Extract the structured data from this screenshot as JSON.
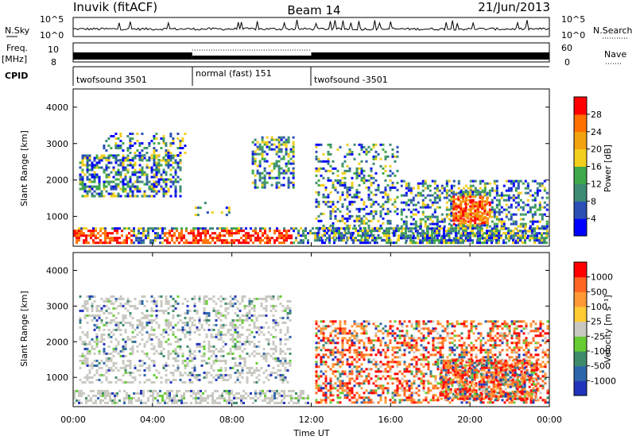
{
  "header": {
    "station": "Inuvik (fitACF)",
    "beam": "Beam 14",
    "date": "21/Jun/2013"
  },
  "top_panels": {
    "nsky_label": "N.Sky",
    "nsearch_label": "N.Search",
    "nsky_ticks": [
      "10^5",
      "10^0"
    ],
    "nsearch_ticks": [
      "10^5",
      "10^0"
    ],
    "freq_label_1": "Freq.",
    "freq_label_2": "[MHz]",
    "freq_ticks": [
      "10",
      "8"
    ],
    "nave_label": "Nave",
    "nave_ticks": [
      "60",
      "0"
    ],
    "cpid_label": "CPID",
    "cpid_segments": [
      {
        "label": "twofsound 3501",
        "start_h": 0,
        "end_h": 6
      },
      {
        "label": "normal (fast) 151",
        "start_h": 6,
        "end_h": 12
      },
      {
        "label": "twofsound -3501",
        "start_h": 12,
        "end_h": 24
      }
    ]
  },
  "chart_data": [
    {
      "type": "heatmap",
      "title": "",
      "xlabel": "",
      "ylabel": "Slant Range [km]",
      "xlim": [
        0,
        24
      ],
      "ylim": [
        180,
        4500
      ],
      "yticks": [
        "1000",
        "2000",
        "3000",
        "4000"
      ],
      "colorbar": {
        "label": "Power [dB]",
        "ticks": [
          "4",
          "8",
          "12",
          "16",
          "20",
          "24",
          "28"
        ],
        "colors": [
          "#0000ff",
          "#2b4fb5",
          "#3d8a75",
          "#3fa84a",
          "#f2cf1c",
          "#f2a20f",
          "#ff7000",
          "#ff0000"
        ]
      }
    },
    {
      "type": "heatmap",
      "title": "",
      "xlabel": "Time UT",
      "ylabel": "Slant Range [km]",
      "xlim": [
        0,
        24
      ],
      "ylim": [
        180,
        4500
      ],
      "xticks": [
        "00:00",
        "04:00",
        "08:00",
        "12:00",
        "16:00",
        "20:00",
        "00:00"
      ],
      "yticks": [
        "1000",
        "2000",
        "3000",
        "4000"
      ],
      "colorbar": {
        "label": "Velocity [m s⁻¹]",
        "ticks": [
          "1000",
          "500",
          "100",
          "25",
          "-25",
          "-100",
          "-500",
          "-1000"
        ],
        "colors": [
          "#2233bb",
          "#2b66aa",
          "#3d8a6a",
          "#66cc33",
          "#c8c8c0",
          "#ffcc33",
          "#ff9933",
          "#ff6622",
          "#ff0000"
        ]
      }
    }
  ]
}
